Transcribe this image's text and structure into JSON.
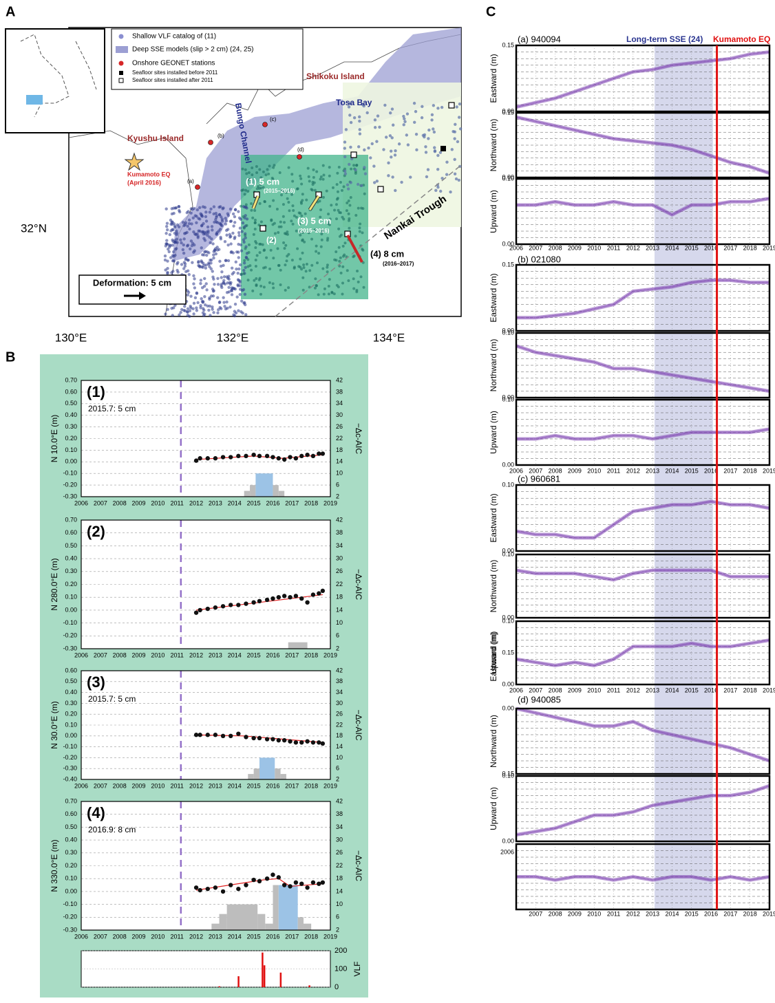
{
  "panel_labels": [
    "A",
    "B",
    "C"
  ],
  "map": {
    "legend": [
      "Shallow VLF catalog of (11)",
      "Deep SSE models (slip > 2 cm) (24, 25)",
      "Onshore GEONET stations",
      "Seafloor sites installed before 2011",
      "Seafloor sites installed after 2011"
    ],
    "places": [
      "Kyushu Island",
      "Shikoku Island",
      "Bungo Channel",
      "Tosa Bay",
      "Nankai Trough"
    ],
    "eq_label": [
      "Kumamoto EQ",
      "(April 2016)"
    ],
    "stations": [
      "(a)",
      "(b)",
      "(c)",
      "(d)"
    ],
    "vectors": [
      {
        "label": "(1) 5 cm",
        "period": "(2015–2016)"
      },
      {
        "label": "(3) 5 cm",
        "period": "(2015–2016)"
      },
      {
        "label": "(4) 8 cm",
        "period": "(2016–2017)"
      }
    ],
    "site2": "(2)",
    "lon_ticks": [
      "130°E",
      "132°E",
      "134°E"
    ],
    "lat_tick": "32°N",
    "scale": "Deformation: 5 cm"
  },
  "panel_b": {
    "years": [
      2006,
      2007,
      2008,
      2009,
      2010,
      2011,
      2012,
      2013,
      2014,
      2015,
      2016,
      2017,
      2018,
      2019
    ],
    "reference_year": 2011.2,
    "y2label": "−Δc-AIC",
    "y2ticks": [
      "42",
      "38",
      "34",
      "30",
      "26",
      "22",
      "18",
      "14",
      "10",
      "6",
      "2"
    ],
    "y2lim": [
      2,
      42
    ],
    "plots": [
      {
        "label": "(1)",
        "note": "2015.7: 5 cm",
        "ylabel": "N 10.0°E (m)",
        "ylim": [
          -0.3,
          0.7
        ],
        "yticks": [
          "0.70",
          "0.60",
          "0.50",
          "0.40",
          "0.30",
          "0.20",
          "0.10",
          "0.00",
          "-0.10",
          "-0.20",
          "-0.30"
        ],
        "points_x": [
          2012.0,
          2012.2,
          2012.6,
          2013.0,
          2013.4,
          2013.8,
          2014.2,
          2014.6,
          2015.0,
          2015.3,
          2015.7,
          2016.0,
          2016.3,
          2016.6,
          2016.9,
          2017.2,
          2017.5,
          2017.8,
          2018.1,
          2018.4,
          2018.6
        ],
        "points_y": [
          0.01,
          0.03,
          0.03,
          0.03,
          0.04,
          0.04,
          0.05,
          0.05,
          0.06,
          0.05,
          0.05,
          0.04,
          0.03,
          0.02,
          0.04,
          0.03,
          0.05,
          0.06,
          0.05,
          0.07,
          0.07
        ],
        "fit_x": [
          2012.0,
          2015.0,
          2016.5,
          2018.6
        ],
        "fit_y": [
          0.02,
          0.05,
          0.03,
          0.06
        ],
        "aic_bins": [
          2014.5,
          2014.8,
          2015.1,
          2016.0,
          2016.3,
          2016.6
        ],
        "aic_values": [
          4,
          6,
          10,
          6,
          4
        ],
        "aic_colors": [
          "#bdbdbd",
          "#bdbdbd",
          "#9cc3e6",
          "#bdbdbd",
          "#bdbdbd"
        ]
      },
      {
        "label": "(2)",
        "ylabel": "N 280.0°E (m)",
        "ylim": [
          -0.3,
          0.7
        ],
        "yticks": [
          "0.70",
          "0.60",
          "0.50",
          "0.40",
          "0.30",
          "0.20",
          "0.10",
          "0.00",
          "-0.10",
          "-0.20",
          "-0.30"
        ],
        "points_x": [
          2012.0,
          2012.2,
          2012.6,
          2013.0,
          2013.4,
          2013.8,
          2014.2,
          2014.6,
          2015.0,
          2015.3,
          2015.7,
          2016.0,
          2016.3,
          2016.6,
          2016.9,
          2017.2,
          2017.5,
          2017.8,
          2018.1,
          2018.4,
          2018.6
        ],
        "points_y": [
          -0.02,
          0.0,
          0.01,
          0.02,
          0.03,
          0.04,
          0.04,
          0.05,
          0.06,
          0.07,
          0.08,
          0.09,
          0.1,
          0.11,
          0.1,
          0.11,
          0.09,
          0.06,
          0.12,
          0.13,
          0.15
        ],
        "fit_x": [
          2012.0,
          2018.6
        ],
        "fit_y": [
          0.0,
          0.12
        ],
        "aic_bins": [
          2016.8,
          2017.8
        ],
        "aic_values": [
          4
        ],
        "aic_colors": [
          "#bdbdbd"
        ]
      },
      {
        "label": "(3)",
        "note": "2015.7: 5 cm",
        "ylabel": "N 30.0°E (m)",
        "ylim": [
          -0.4,
          0.6
        ],
        "yticks": [
          "0.60",
          "0.50",
          "0.40",
          "0.30",
          "0.20",
          "0.10",
          "0.00",
          "-0.10",
          "-0.20",
          "-0.30",
          "-0.40"
        ],
        "points_x": [
          2012.0,
          2012.2,
          2012.6,
          2013.0,
          2013.4,
          2013.8,
          2014.2,
          2014.6,
          2015.0,
          2015.3,
          2015.7,
          2016.0,
          2016.3,
          2016.6,
          2016.9,
          2017.2,
          2017.5,
          2017.8,
          2018.1,
          2018.4,
          2018.6
        ],
        "points_y": [
          0.01,
          0.01,
          0.01,
          0.01,
          0.0,
          0.0,
          0.02,
          -0.01,
          -0.02,
          -0.02,
          -0.03,
          -0.03,
          -0.04,
          -0.04,
          -0.05,
          -0.06,
          -0.06,
          -0.05,
          -0.06,
          -0.06,
          -0.07
        ],
        "fit_x": [
          2012.0,
          2014.5,
          2018.6
        ],
        "fit_y": [
          0.01,
          0.0,
          -0.06
        ],
        "aic_bins": [
          2014.7,
          2015.0,
          2015.3,
          2016.1,
          2016.4,
          2016.7
        ],
        "aic_values": [
          4,
          6,
          10,
          6,
          4
        ],
        "aic_colors": [
          "#bdbdbd",
          "#bdbdbd",
          "#9cc3e6",
          "#bdbdbd",
          "#bdbdbd"
        ]
      },
      {
        "label": "(4)",
        "note": "2016.9: 8 cm",
        "ylabel": "N 330.0°E (m)",
        "ylim": [
          -0.3,
          0.7
        ],
        "yticks": [
          "0.70",
          "0.60",
          "0.50",
          "0.40",
          "0.30",
          "0.20",
          "0.10",
          "0.00",
          "-0.10",
          "-0.20",
          "-0.30"
        ],
        "points_x": [
          2012.0,
          2012.2,
          2012.6,
          2013.0,
          2013.4,
          2013.8,
          2014.2,
          2014.6,
          2015.0,
          2015.3,
          2015.7,
          2016.0,
          2016.3,
          2016.6,
          2016.9,
          2017.2,
          2017.5,
          2017.8,
          2018.1,
          2018.4,
          2018.6
        ],
        "points_y": [
          0.03,
          0.01,
          0.02,
          0.03,
          0.0,
          0.05,
          0.02,
          0.05,
          0.09,
          0.08,
          0.1,
          0.13,
          0.11,
          0.05,
          0.04,
          0.07,
          0.06,
          0.03,
          0.07,
          0.06,
          0.07
        ],
        "fit_x": [
          2012.0,
          2015.5,
          2016.3,
          2016.9,
          2018.6
        ],
        "fit_y": [
          0.01,
          0.09,
          0.1,
          0.04,
          0.06
        ],
        "aic_bins": [
          2012.8,
          2013.2,
          2013.6,
          2015.2,
          2015.6,
          2016.0,
          2016.3,
          2017.3,
          2017.6,
          2018.0
        ],
        "aic_values": [
          4,
          7,
          10,
          7,
          4,
          16,
          16,
          6,
          4
        ],
        "aic_colors": [
          "#bdbdbd",
          "#bdbdbd",
          "#bdbdbd",
          "#bdbdbd",
          "#bdbdbd",
          "#bdbdbd",
          "#9cc3e6",
          "#bdbdbd",
          "#bdbdbd"
        ]
      }
    ],
    "vlf": {
      "label": "VLF",
      "ylim": [
        0,
        200
      ],
      "yticks": [
        "200",
        "100",
        "0"
      ],
      "x": [
        2013.2,
        2014.2,
        2015.45,
        2015.55,
        2016.4,
        2017.9
      ],
      "values": [
        5,
        60,
        190,
        120,
        80,
        10
      ]
    }
  },
  "panel_c": {
    "sse_label": "Long-term SSE (24)",
    "eq_label": "Kumamoto EQ",
    "sse_span": [
      2013.1,
      2016.1
    ],
    "eq_year": 2016.3,
    "color": "#7b3fb0",
    "x": [
      2006,
      2007,
      2008,
      2009,
      2010,
      2011,
      2012,
      2013,
      2014,
      2015,
      2016,
      2017,
      2018,
      2019
    ],
    "stations": [
      {
        "name": "(a) 940094",
        "year_ticks": [
          2006,
          2007,
          2008,
          2009,
          2010,
          2011,
          2012,
          2013,
          2014,
          2015,
          2016,
          2017,
          2018,
          2019
        ],
        "traces": [
          {
            "ylabel": "Eastward (m)",
            "ylim": [
              0,
              0.15
            ],
            "ticks": [
              "0.15",
              "0.00"
            ],
            "values": [
              0.01,
              0.02,
              0.03,
              0.045,
              0.06,
              0.075,
              0.09,
              0.095,
              0.105,
              0.11,
              0.115,
              0.12,
              0.13,
              0.135
            ]
          },
          {
            "ylabel": "Northward (m)",
            "ylim": [
              0,
              0.15
            ],
            "ticks": [
              "0.15",
              "0.00"
            ],
            "values": [
              0.14,
              0.13,
              0.12,
              0.11,
              0.1,
              0.09,
              0.085,
              0.08,
              0.075,
              0.065,
              0.05,
              0.035,
              0.025,
              0.01
            ]
          },
          {
            "ylabel": "Upward (m)",
            "ylim": [
              0,
              0.1
            ],
            "ticks": [
              "0.10",
              "0.00"
            ],
            "values": [
              0.06,
              0.06,
              0.065,
              0.06,
              0.06,
              0.065,
              0.06,
              0.06,
              0.045,
              0.06,
              0.06,
              0.065,
              0.065,
              0.07
            ]
          }
        ]
      },
      {
        "name": "(b) 021080",
        "year_ticks": [
          2006,
          2007,
          2008,
          2009,
          2010,
          2011,
          2012,
          2013,
          2014,
          2015,
          2016,
          2017,
          2018,
          2019
        ],
        "traces": [
          {
            "ylabel": "Eastward (m)",
            "ylim": [
              0,
              0.15
            ],
            "ticks": [
              "0.15",
              "0.00"
            ],
            "values": [
              0.03,
              0.03,
              0.035,
              0.04,
              0.05,
              0.06,
              0.09,
              0.095,
              0.1,
              0.11,
              0.115,
              0.115,
              0.11,
              0.11
            ]
          },
          {
            "ylabel": "Northward (m)",
            "ylim": [
              0,
              0.1
            ],
            "ticks": [
              "0.10",
              "0.00"
            ],
            "values": [
              0.08,
              0.07,
              0.065,
              0.06,
              0.055,
              0.045,
              0.045,
              0.04,
              0.035,
              0.03,
              0.025,
              0.02,
              0.015,
              0.01
            ]
          },
          {
            "ylabel": "Upward (m)",
            "ylim": [
              0,
              0.1
            ],
            "ticks": [
              "0.10",
              "0.00"
            ],
            "values": [
              0.04,
              0.04,
              0.045,
              0.04,
              0.04,
              0.045,
              0.045,
              0.04,
              0.045,
              0.05,
              0.05,
              0.05,
              0.05,
              0.055
            ]
          }
        ]
      },
      {
        "name": "(c) 960681",
        "year_ticks": [
          2006,
          2007,
          2008,
          2009,
          2010,
          2011,
          2012,
          2013,
          2014,
          2015,
          2016,
          2017,
          2018,
          2019
        ],
        "traces": [
          {
            "ylabel": "Eastward (m)",
            "ylim": [
              0,
              0.1
            ],
            "ticks": [
              "0.10",
              "0.00"
            ],
            "values": [
              0.03,
              0.025,
              0.025,
              0.02,
              0.02,
              0.04,
              0.06,
              0.065,
              0.07,
              0.07,
              0.075,
              0.07,
              0.07,
              0.065
            ]
          },
          {
            "ylabel": "Northward (m)",
            "ylim": [
              0,
              0.1
            ],
            "ticks": [
              "0.10",
              "0.00"
            ],
            "values": [
              0.075,
              0.07,
              0.07,
              0.07,
              0.065,
              0.06,
              0.07,
              0.075,
              0.075,
              0.075,
              0.075,
              0.065,
              0.065,
              0.065
            ]
          },
          {
            "ylabel": "Upward (m)",
            "ylim": [
              0,
              0.1
            ],
            "ticks": [
              "0.10",
              "0.15",
              "0.00"
            ],
            "values": [
              0.04,
              0.035,
              0.03,
              0.035,
              0.03,
              0.04,
              0.06,
              0.06,
              0.06,
              0.065,
              0.06,
              0.06,
              0.065,
              0.07
            ]
          }
        ]
      },
      {
        "name": "(d) 940085",
        "extra_label": "Eastward (m)",
        "year_ticks": [
          2007,
          2008,
          2009,
          2010,
          2011,
          2012,
          2013,
          2014,
          2015,
          2016,
          2017,
          2018,
          2019
        ],
        "traces": [
          {
            "ylabel": "Northward (m)",
            "ylim": [
              0,
              0.15
            ],
            "ticks": [
              "0.00",
              "0.15"
            ],
            "values": [
              0.15,
              0.14,
              0.13,
              0.12,
              0.11,
              0.11,
              0.12,
              0.1,
              0.09,
              0.08,
              0.07,
              0.06,
              0.045,
              0.03
            ]
          },
          {
            "ylabel": "Upward (m)",
            "ylim": [
              0,
              0.1
            ],
            "ticks": [
              "0.10",
              "0.00"
            ],
            "values": [
              0.01,
              0.015,
              0.02,
              0.03,
              0.04,
              0.04,
              0.045,
              0.055,
              0.06,
              0.065,
              0.07,
              0.07,
              0.075,
              0.085
            ]
          },
          {
            "ticks": [
              "2006"
            ],
            "ylim": [
              0,
              0.1
            ],
            "values": [
              0.05,
              0.05,
              0.045,
              0.05,
              0.05,
              0.045,
              0.05,
              0.045,
              0.05,
              0.05,
              0.045,
              0.05,
              0.045,
              0.05
            ]
          }
        ]
      }
    ]
  }
}
